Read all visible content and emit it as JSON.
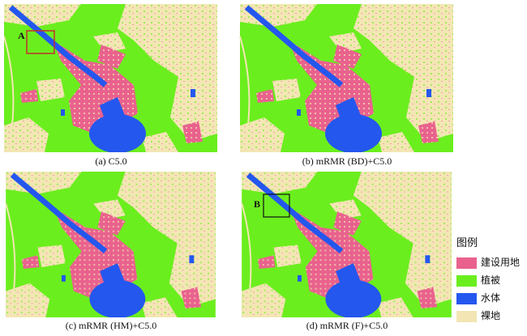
{
  "panels": [
    {
      "caption": "(a) C5.0",
      "annotation": "A"
    },
    {
      "caption": "(b) mRMR (BD)+C5.0"
    },
    {
      "caption": "(c) mRMR (HM)+C5.0"
    },
    {
      "caption": "(d) mRMR (F)+C5.0",
      "annotation": "B"
    }
  ],
  "legend": {
    "title": "图例",
    "items": [
      {
        "label": "建设用地",
        "color": "#e9628e"
      },
      {
        "label": "植被",
        "color": "#6bee1e"
      },
      {
        "label": "水体",
        "color": "#2457ee"
      },
      {
        "label": "裸地",
        "color": "#f3e6b4"
      }
    ]
  }
}
